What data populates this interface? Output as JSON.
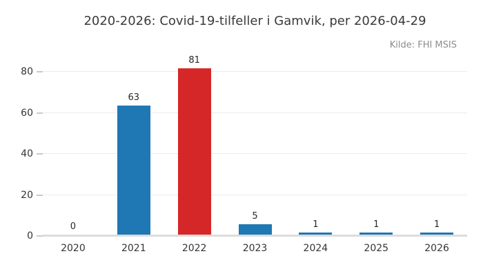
{
  "header": {
    "title": "2020-2026: Covid-19-tilfeller i Gamvik, per 2026-04-29",
    "source": "Kilde: FHI MSIS"
  },
  "colors": {
    "background": "#ffffff",
    "title_text": "#3a3a3a",
    "source_text": "#8c8c8c",
    "tick_text": "#333333",
    "value_text": "#262626",
    "grid": "#ebebeb",
    "axis_line": "#dcdcdc",
    "tick_mark": "#c9c9c9"
  },
  "chart_data": {
    "type": "bar",
    "title": "2020-2026: Covid-19-tilfeller i Gamvik, per 2026-04-29",
    "source": "Kilde: FHI MSIS",
    "categories": [
      "2020",
      "2021",
      "2022",
      "2023",
      "2024",
      "2025",
      "2026"
    ],
    "values": [
      0,
      63,
      81,
      5,
      1,
      1,
      1
    ],
    "bar_colors": [
      "#1f77b4",
      "#1f77b4",
      "#d62728",
      "#1f77b4",
      "#1f77b4",
      "#1f77b4",
      "#1f77b4"
    ],
    "yticks": [
      0,
      20,
      40,
      60,
      80
    ],
    "ylim": [
      0,
      83
    ],
    "xlabel": "",
    "ylabel": "",
    "grid": true,
    "legend": false,
    "value_labels": true
  }
}
